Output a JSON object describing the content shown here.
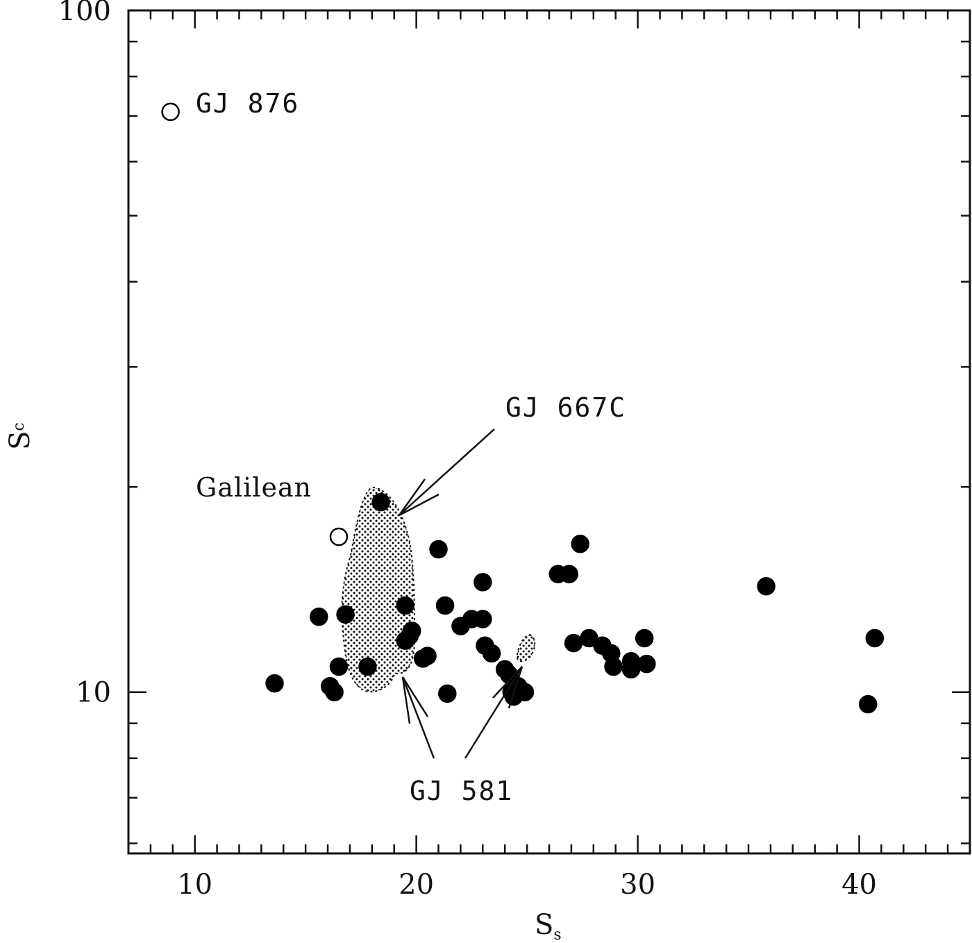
{
  "chart_data": {
    "type": "scatter",
    "xlabel": "S",
    "xlabel_sub": "s",
    "ylabel": "S",
    "ylabel_sub": "c",
    "xlim": [
      7,
      45
    ],
    "ylim": [
      5.8,
      100
    ],
    "yscale": "log",
    "xticks": [
      10,
      20,
      30,
      40
    ],
    "yticks": [
      10,
      100
    ],
    "series": [
      {
        "marker": "filled-circle",
        "x": [
          13.6,
          15.6,
          16.8,
          17.8,
          18.4,
          16.1,
          16.3,
          16.5,
          19.5,
          19.8,
          19.5,
          19.7,
          20.3,
          20.5,
          21.3,
          21.4,
          21.0,
          22.0,
          22.5,
          23.0,
          23.1,
          23.0,
          23.4,
          24.0,
          24.2,
          24.3,
          24.9,
          24.4,
          24.6,
          26.4,
          26.9,
          27.4,
          27.1,
          27.8,
          28.4,
          28.8,
          28.9,
          29.7,
          29.7,
          30.3,
          30.4,
          35.8,
          40.4,
          40.7
        ],
        "y": [
          10.3,
          12.9,
          13.0,
          10.9,
          19.0,
          10.2,
          10.0,
          10.9,
          13.4,
          12.3,
          11.9,
          12.1,
          11.2,
          11.3,
          13.4,
          9.95,
          16.2,
          12.5,
          12.8,
          14.5,
          11.7,
          12.8,
          11.4,
          10.8,
          10.6,
          10.0,
          10.0,
          9.85,
          10.2,
          14.9,
          14.9,
          16.5,
          11.8,
          12.0,
          11.7,
          11.4,
          10.9,
          11.1,
          10.8,
          12.0,
          11.0,
          14.3,
          9.6,
          12.0
        ]
      },
      {
        "marker": "open-circle",
        "x": [
          8.9,
          16.5
        ],
        "y": [
          71,
          16.9
        ]
      }
    ],
    "annotations": [
      {
        "text": "GJ 876"
      },
      {
        "text": "Galilean"
      },
      {
        "text": "GJ 667C"
      },
      {
        "text": "GJ 581"
      }
    ]
  }
}
